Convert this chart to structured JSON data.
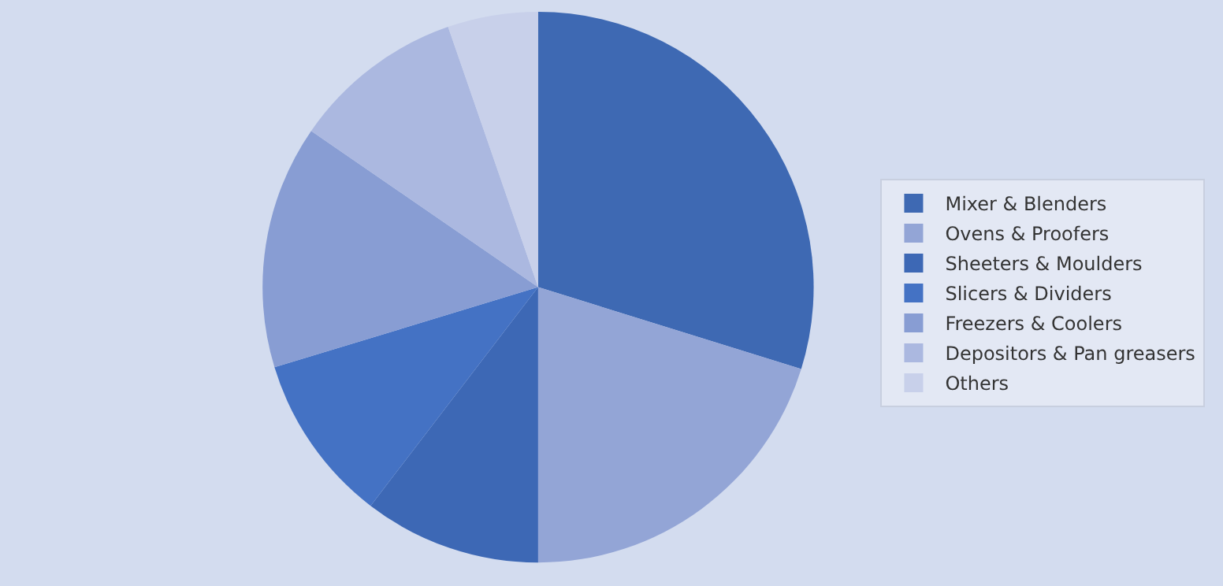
{
  "chart_data": {
    "type": "pie",
    "categories": [
      "Mixer & Blenders",
      "Ovens & Proofers",
      "Sheeters & Moulders",
      "Slicers & Dividers",
      "Freezers & Coolers",
      "Depositors & Pan greasers",
      "Others"
    ],
    "values": [
      29.8,
      20.2,
      10.4,
      9.9,
      14.3,
      10.1,
      5.3
    ],
    "colors": [
      "#3e69b3",
      "#93a5d6",
      "#3d68b5",
      "#4472c4",
      "#889dd3",
      "#abb8e0",
      "#c8d0ea"
    ],
    "legend": "right"
  }
}
